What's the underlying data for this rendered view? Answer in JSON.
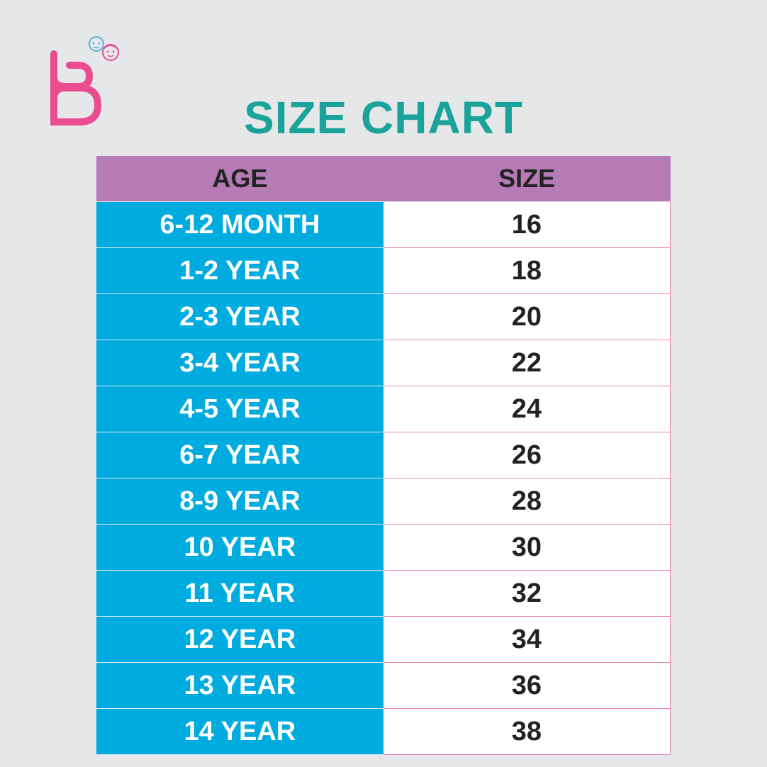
{
  "brand": {
    "logo_icon": "letter-b-logo-with-kids-faces",
    "logo_color": "#ea4d8f"
  },
  "title": "SIZE CHART",
  "colors": {
    "title": "#1aa39a",
    "header_bg": "#b67bb5",
    "age_bg": "#00acdf",
    "size_bg": "#ffffff"
  },
  "table": {
    "headers": {
      "age": "AGE",
      "size": "SIZE"
    },
    "rows": [
      {
        "age": "6-12 MONTH",
        "size": "16"
      },
      {
        "age": "1-2 YEAR",
        "size": "18"
      },
      {
        "age": "2-3 YEAR",
        "size": "20"
      },
      {
        "age": "3-4 YEAR",
        "size": "22"
      },
      {
        "age": "4-5 YEAR",
        "size": "24"
      },
      {
        "age": "6-7 YEAR",
        "size": "26"
      },
      {
        "age": "8-9 YEAR",
        "size": "28"
      },
      {
        "age": "10 YEAR",
        "size": "30"
      },
      {
        "age": "11 YEAR",
        "size": "32"
      },
      {
        "age": "12 YEAR",
        "size": "34"
      },
      {
        "age": "13 YEAR",
        "size": "36"
      },
      {
        "age": "14 YEAR",
        "size": "38"
      }
    ]
  }
}
